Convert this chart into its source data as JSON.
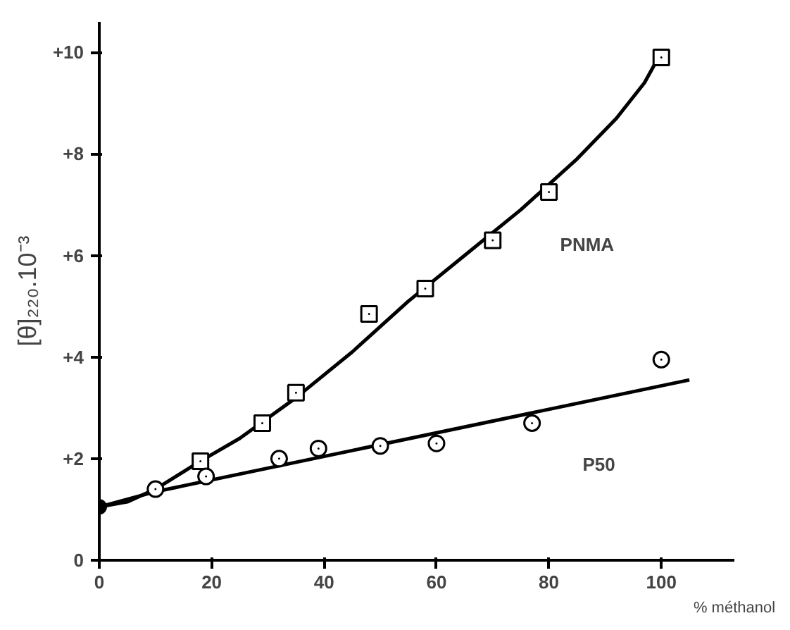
{
  "chart_data": {
    "type": "scatter",
    "xlabel": "% méthanol",
    "ylabel": "[θ]₂₂₀.10⁻³",
    "xlim": [
      0,
      113
    ],
    "ylim": [
      0,
      10.6
    ],
    "xticks": [
      0,
      20,
      40,
      60,
      80,
      100
    ],
    "yticks": [
      0,
      {
        "value": 2,
        "label": "+2"
      },
      {
        "value": 4,
        "label": "+4"
      },
      {
        "value": 6,
        "label": "+6"
      },
      {
        "value": 8,
        "label": "+8"
      },
      {
        "value": 10,
        "label": "+10"
      }
    ],
    "grid": false,
    "series": [
      {
        "name": "PNMA",
        "type": "line",
        "color": "#000000",
        "x": [
          0,
          5,
          10,
          18,
          25,
          35,
          45,
          55,
          65,
          75,
          85,
          92,
          97,
          100
        ],
        "values": [
          1.05,
          1.15,
          1.4,
          1.95,
          2.4,
          3.2,
          4.1,
          5.1,
          6.0,
          6.9,
          7.9,
          8.7,
          9.4,
          10.0
        ]
      },
      {
        "name": "P50",
        "type": "line",
        "color": "#000000",
        "x": [
          0,
          10,
          105
        ],
        "values": [
          1.05,
          1.35,
          3.55
        ]
      },
      {
        "color": "#000000",
        "marker": "square",
        "x": [
          18,
          29,
          35,
          48,
          58,
          70,
          80,
          100
        ],
        "values": [
          1.95,
          2.7,
          3.3,
          4.85,
          5.35,
          6.3,
          7.25,
          9.9
        ]
      },
      {
        "color": "#000000",
        "marker": "circle",
        "x": [
          10,
          19,
          32,
          39,
          50,
          60,
          77,
          100
        ],
        "values": [
          1.4,
          1.65,
          2.0,
          2.2,
          2.25,
          2.3,
          2.7,
          3.95
        ]
      },
      {
        "color": "#000000",
        "marker": "dot",
        "x": [
          0
        ],
        "values": [
          1.05
        ]
      }
    ]
  }
}
